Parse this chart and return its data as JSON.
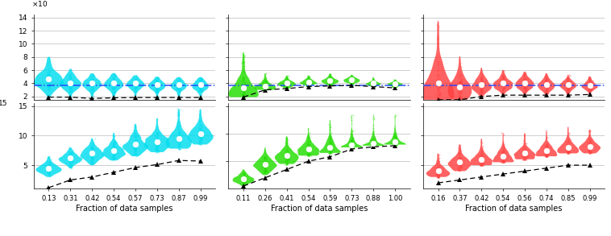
{
  "panels": {
    "top_left": {
      "x_labels": [
        "0.13",
        "0.31",
        "0.42",
        "0.54",
        "0.57",
        "0.73",
        "0.87",
        "0.99"
      ],
      "color": "#00DDEE",
      "medians": [
        4.7,
        4.1,
        4.0,
        4.0,
        4.0,
        3.8,
        3.8,
        3.75
      ],
      "bot_pts": [
        1.9,
        1.9,
        1.7,
        1.8,
        1.85,
        1.85,
        1.85,
        1.85
      ],
      "mins": [
        1.9,
        1.9,
        1.7,
        1.8,
        1.85,
        1.85,
        1.85,
        1.85
      ],
      "maxs": [
        8.0,
        6.2,
        5.5,
        5.5,
        5.2,
        5.0,
        4.9,
        4.9
      ],
      "widths": [
        1.4,
        1.0,
        0.9,
        0.9,
        0.85,
        0.8,
        0.8,
        0.75
      ],
      "ylim": [
        1.5,
        14.5
      ],
      "yticks": [
        2,
        4,
        6,
        8,
        10,
        12,
        14
      ],
      "show_hline": true,
      "show_yticks": true
    },
    "bottom_left": {
      "x_labels": [
        "0.13",
        "0.31",
        "0.42",
        "0.54",
        "0.57",
        "0.73",
        "0.87",
        "0.99"
      ],
      "color": "#00DDEE",
      "medians": [
        4.5,
        6.2,
        7.0,
        7.5,
        8.5,
        9.0,
        9.5,
        10.3
      ],
      "bot_pts": [
        1.2,
        2.5,
        3.0,
        3.8,
        4.6,
        5.1,
        5.8,
        5.7
      ],
      "mins": [
        3.0,
        4.5,
        5.0,
        5.8,
        6.5,
        7.2,
        7.8,
        8.5
      ],
      "maxs": [
        6.5,
        8.0,
        9.5,
        10.5,
        12.0,
        13.0,
        14.5,
        14.5
      ],
      "widths": [
        1.2,
        1.1,
        1.1,
        1.1,
        1.2,
        1.2,
        1.2,
        1.2
      ],
      "ylim": [
        1.0,
        15.5
      ],
      "yticks": [
        5,
        10,
        15
      ],
      "show_hline": false,
      "show_yticks": true
    },
    "top_middle": {
      "x_labels": [
        "0.11",
        "0.26",
        "0.41",
        "0.54",
        "0.59",
        "0.73",
        "0.88",
        "1.00"
      ],
      "color": "#22DD00",
      "medians": [
        3.3,
        3.6,
        4.0,
        4.2,
        4.4,
        4.5,
        4.0,
        3.9
      ],
      "bot_pts": [
        1.9,
        3.0,
        3.2,
        3.5,
        3.6,
        3.7,
        3.5,
        3.3
      ],
      "mins": [
        1.9,
        3.0,
        3.2,
        3.5,
        3.6,
        3.7,
        3.5,
        3.3
      ],
      "maxs": [
        8.7,
        5.5,
        5.2,
        5.2,
        5.5,
        5.3,
        4.9,
        4.6
      ],
      "widths": [
        1.4,
        1.0,
        0.85,
        0.8,
        0.8,
        0.75,
        0.7,
        0.7
      ],
      "ylim": [
        1.5,
        14.5
      ],
      "yticks": [
        2,
        4,
        6,
        8,
        10,
        12,
        14
      ],
      "show_hline": true,
      "show_yticks": false
    },
    "bottom_middle": {
      "x_labels": [
        "0.11",
        "0.26",
        "0.41",
        "0.54",
        "0.59",
        "0.73",
        "0.88",
        "1.00"
      ],
      "color": "#22DD00",
      "medians": [
        1.8,
        4.5,
        6.0,
        7.2,
        7.5,
        8.0,
        8.2,
        8.5
      ],
      "bot_pts": [
        0.5,
        2.0,
        3.5,
        5.0,
        5.8,
        7.2,
        7.6,
        7.8
      ],
      "mins": [
        0.5,
        2.5,
        4.5,
        6.0,
        6.5,
        7.5,
        7.8,
        8.0
      ],
      "maxs": [
        3.5,
        7.5,
        9.5,
        11.0,
        12.5,
        13.5,
        13.5,
        13.5
      ],
      "widths": [
        1.0,
        1.1,
        1.1,
        1.0,
        1.0,
        1.0,
        1.0,
        1.0
      ],
      "ylim": [
        0.0,
        15.5
      ],
      "yticks": [
        5,
        10,
        15
      ],
      "show_hline": false,
      "show_yticks": false
    },
    "top_right": {
      "x_labels": [
        "0.16",
        "0.37",
        "0.42",
        "0.54",
        "0.56",
        "0.74",
        "0.85",
        "0.99"
      ],
      "color": "#FF4040",
      "medians": [
        4.0,
        3.5,
        3.8,
        4.0,
        4.0,
        3.8,
        3.8,
        3.7
      ],
      "bot_pts": [
        1.5,
        1.5,
        2.0,
        2.2,
        2.2,
        2.2,
        2.2,
        2.3
      ],
      "mins": [
        1.5,
        1.5,
        2.0,
        2.2,
        2.2,
        2.2,
        2.2,
        2.3
      ],
      "maxs": [
        13.5,
        8.2,
        6.5,
        6.0,
        5.8,
        5.5,
        5.3,
        5.0
      ],
      "widths": [
        1.5,
        1.1,
        0.95,
        0.9,
        0.85,
        0.8,
        0.8,
        0.75
      ],
      "ylim": [
        1.5,
        14.5
      ],
      "yticks": [
        2,
        4,
        6,
        8,
        10,
        12,
        14
      ],
      "show_hline": true,
      "show_yticks": false
    },
    "bottom_right": {
      "x_labels": [
        "0.16",
        "0.37",
        "0.42",
        "0.54",
        "0.56",
        "0.74",
        "0.85",
        "0.99"
      ],
      "color": "#FF4040",
      "medians": [
        4.0,
        5.5,
        6.0,
        6.5,
        7.0,
        7.5,
        8.0,
        8.2
      ],
      "bot_pts": [
        2.0,
        2.5,
        3.0,
        3.5,
        4.0,
        4.5,
        5.0,
        5.0
      ],
      "mins": [
        3.0,
        4.0,
        5.0,
        5.5,
        6.0,
        6.5,
        7.0,
        7.0
      ],
      "maxs": [
        7.0,
        8.5,
        9.5,
        10.5,
        10.5,
        11.0,
        11.5,
        11.0
      ],
      "widths": [
        1.1,
        1.1,
        1.0,
        1.0,
        1.0,
        1.0,
        1.0,
        1.0
      ],
      "ylim": [
        1.0,
        15.5
      ],
      "yticks": [
        5,
        10,
        15
      ],
      "show_hline": false,
      "show_yticks": false
    }
  },
  "hline_y": 3.7,
  "hline_color": "#2244FF",
  "bg_color": "#FFFFFF",
  "grid_color": "#BBBBBB",
  "xlabel": "Fraction of data samples",
  "violin_alpha": 0.82
}
